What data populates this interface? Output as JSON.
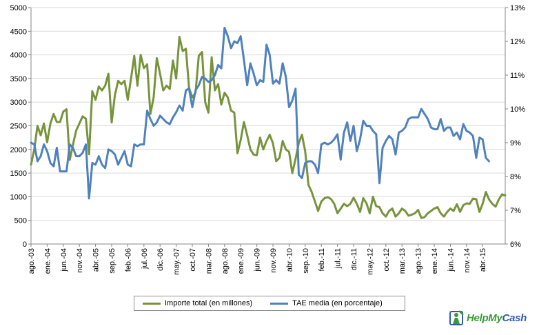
{
  "chart_data": {
    "type": "line",
    "x_tick_labels": [
      "ago.-03",
      "ene.-04",
      "jun.-04",
      "nov.-04",
      "abr.-05",
      "sep.-05",
      "feb.-06",
      "jul.-06",
      "dic.-06",
      "may.-07",
      "oct.-07",
      "mar.-08",
      "ago.-08",
      "ene.-09",
      "jun.-09",
      "nov.-09",
      "abr.-10",
      "sep.-10",
      "feb.-11",
      "jul.-11",
      "dic.-11",
      "may.-12",
      "oct.-12",
      "mar.-13",
      "ago.-13",
      "ene.-14",
      "jun.-14",
      "nov.-14",
      "abr.-15"
    ],
    "x_start": "ago.-03",
    "x_period": "monthly",
    "y_left": {
      "min": 0,
      "max": 5000,
      "step": 500,
      "ticks": [
        "0",
        "500",
        "1000",
        "1500",
        "2000",
        "2500",
        "3000",
        "3500",
        "4000",
        "4500",
        "5000"
      ]
    },
    "y_right": {
      "min": 6,
      "max": 13,
      "step": 1,
      "ticks": [
        "6%",
        "7%",
        "8%",
        "9%",
        "10%",
        "11%",
        "12%",
        "13%"
      ]
    },
    "grid": "horizontal",
    "legend_position": "bottom",
    "series": [
      {
        "name": "Importe total (en millones)",
        "axis": "left",
        "color": "#77933c",
        "values": [
          1680,
          2000,
          2500,
          2300,
          2550,
          2150,
          2550,
          2750,
          2580,
          2580,
          2800,
          2850,
          1780,
          2100,
          2400,
          2550,
          2700,
          2650,
          1900,
          3230,
          3050,
          3330,
          3250,
          3350,
          3600,
          2570,
          3150,
          3450,
          3380,
          3450,
          3050,
          3500,
          3980,
          3350,
          4000,
          3720,
          3800,
          2750,
          3100,
          3930,
          3600,
          3250,
          3350,
          3280,
          3880,
          3500,
          4380,
          4080,
          4130,
          3300,
          3100,
          3200,
          3980,
          4060,
          3000,
          2780,
          3950,
          3250,
          3380,
          2950,
          3200,
          3100,
          2820,
          2780,
          1920,
          2200,
          2580,
          2300,
          2000,
          1890,
          1880,
          2250,
          2000,
          2180,
          2310,
          2130,
          1750,
          1820,
          2180,
          2000,
          1950,
          1500,
          1800,
          2140,
          2310,
          1960,
          1250,
          1100,
          900,
          700,
          900,
          970,
          990,
          950,
          850,
          650,
          750,
          850,
          800,
          850,
          980,
          850,
          680,
          970,
          860,
          650,
          1000,
          800,
          780,
          650,
          580,
          700,
          750,
          580,
          650,
          750,
          700,
          600,
          620,
          650,
          720,
          550,
          570,
          650,
          700,
          750,
          780,
          650,
          580,
          680,
          750,
          700,
          840,
          680,
          820,
          860,
          850,
          960,
          950,
          680,
          850,
          1100,
          940,
          850,
          790,
          940,
          1050,
          1030
        ]
      },
      {
        "name": "TAE media (en porcentaje)",
        "axis": "right",
        "color": "#4f81bd",
        "values": [
          9.0,
          8.95,
          8.45,
          8.6,
          8.95,
          8.75,
          8.4,
          8.3,
          8.85,
          8.15,
          8.15,
          8.15,
          8.95,
          8.85,
          8.6,
          8.6,
          8.7,
          8.95,
          7.35,
          8.4,
          8.35,
          8.6,
          8.35,
          8.25,
          8.8,
          8.75,
          8.65,
          8.35,
          8.55,
          8.75,
          8.35,
          8.3,
          8.95,
          8.9,
          8.95,
          8.95,
          9.95,
          9.7,
          9.5,
          9.6,
          9.8,
          9.7,
          9.6,
          9.55,
          9.75,
          9.9,
          10.1,
          9.95,
          10.55,
          10.6,
          10.05,
          10.55,
          10.7,
          10.95,
          10.9,
          10.8,
          10.85,
          11.0,
          11.3,
          11.2,
          12.4,
          12.15,
          11.8,
          12.0,
          11.95,
          12.15,
          11.45,
          10.7,
          11.35,
          11.05,
          10.7,
          10.85,
          10.8,
          11.9,
          11.6,
          10.75,
          10.85,
          10.75,
          11.35,
          10.95,
          10.05,
          10.25,
          10.6,
          8.05,
          7.95,
          8.4,
          8.45,
          8.45,
          8.35,
          8.1,
          8.95,
          9.0,
          8.95,
          9.0,
          9.1,
          9.25,
          8.5,
          9.3,
          9.6,
          9.05,
          9.5,
          8.75,
          9.1,
          9.65,
          9.5,
          9.5,
          9.35,
          9.25,
          7.8,
          8.85,
          9.05,
          9.2,
          9.1,
          8.65,
          9.3,
          9.35,
          9.45,
          9.7,
          9.75,
          9.75,
          9.75,
          10.0,
          9.85,
          9.7,
          9.45,
          9.4,
          9.4,
          9.7,
          9.35,
          9.45,
          9.45,
          9.2,
          9.3,
          9.1,
          9.55,
          9.35,
          9.3,
          9.2,
          8.55,
          9.15,
          9.1,
          8.55,
          8.45
        ]
      }
    ]
  },
  "logo": {
    "text_help": "HelpMy",
    "text_cash": "Cash"
  }
}
